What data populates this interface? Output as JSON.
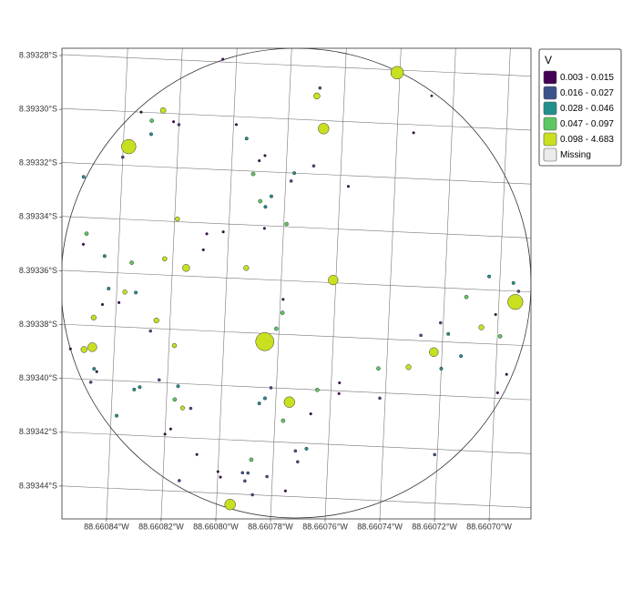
{
  "chart_data": {
    "type": "scatter",
    "x": [
      -88.660741,
      -88.66077,
      -88.660769,
      -88.660728,
      -88.660805,
      -88.660826,
      -88.660834,
      -88.66083,
      -88.66082,
      -88.660822,
      -88.66083,
      -88.660838,
      -88.660767,
      -88.660799,
      -88.660734,
      -88.660795,
      -88.66084,
      -88.660788,
      -88.66079,
      -88.66077,
      -88.660777,
      -88.660792,
      -88.660854,
      -88.660778,
      -88.660757,
      -88.660785,
      -88.660789,
      -88.660787,
      -88.660819,
      -88.660779,
      -88.660802,
      -88.660808,
      -88.660787,
      -88.660852,
      -88.660853,
      -88.660809,
      -88.660845,
      -88.660823,
      -88.660835,
      -88.660815,
      -88.660793,
      -88.660761,
      -88.660704,
      -88.660695,
      -88.660693,
      -88.660694,
      -88.660843,
      -88.660837,
      -88.660833,
      -88.660712,
      -88.660779,
      -88.660845,
      -88.660839,
      -88.660779,
      -88.660701,
      -88.660848,
      -88.660825,
      -88.660721,
      -88.660706,
      -88.660827,
      -88.660781,
      -88.660728,
      -88.660718,
      -88.660699,
      -88.660785,
      -88.660851,
      -88.660848,
      -88.660856,
      -88.660818,
      -88.660723,
      -88.660713,
      -88.660847,
      -88.660846,
      -88.660732,
      -88.66072,
      -88.660743,
      -88.660696,
      -88.660848,
      -88.660823,
      -88.660757,
      -88.660816,
      -88.66083,
      -88.660832,
      -88.660782,
      -88.660765,
      -88.660757,
      -88.660699,
      -88.660742,
      -88.660784,
      -88.660786,
      -88.660775,
      -88.660817,
      -88.660811,
      -88.660814,
      -88.660838,
      -88.660767,
      -88.660777,
      -88.660818,
      -88.66082,
      -88.660772,
      -88.660768,
      -88.660721,
      -88.660808,
      -88.660788,
      -88.660771,
      -88.6608,
      -88.660791,
      -88.660789,
      -88.660782,
      -88.660799,
      -88.660814,
      -88.66079,
      -88.660775,
      -88.660787,
      -88.660795
    ],
    "y": [
      -8.393281,
      -8.393291,
      -8.393288,
      -8.393289,
      -8.393279,
      -8.393299,
      -8.3933,
      -8.393303,
      -8.393304,
      -8.393303,
      -8.393308,
      -8.393313,
      -8.393303,
      -8.393303,
      -8.393303,
      -8.393308,
      -8.393317,
      -8.393314,
      -8.393316,
      -8.393317,
      -8.39332,
      -8.393321,
      -8.393325,
      -8.393323,
      -8.393324,
      -8.393329,
      -8.393331,
      -8.393333,
      -8.393339,
      -8.393339,
      -8.393343,
      -8.393344,
      -8.393341,
      -8.393346,
      -8.39335,
      -8.39335,
      -8.393354,
      -8.393354,
      -8.393356,
      -8.393357,
      -8.393356,
      -8.393359,
      -8.393355,
      -8.393357,
      -8.39336,
      -8.393364,
      -8.393366,
      -8.393367,
      -8.393367,
      -8.393363,
      -8.393367,
      -8.393372,
      -8.393371,
      -8.393372,
      -8.393369,
      -8.393377,
      -8.393377,
      -8.393373,
      -8.393374,
      -8.393381,
      -8.393378,
      -8.393378,
      -8.393377,
      -8.393377,
      -8.393383,
      -8.393389,
      -8.393388,
      -8.393389,
      -8.393386,
      -8.393384,
      -8.393385,
      -8.393396,
      -8.393397,
      -8.39339,
      -8.39339,
      -8.393391,
      -8.393391,
      -8.393401,
      -8.393399,
      -8.393397,
      -8.393401,
      -8.393402,
      -8.393403,
      -8.3934,
      -8.3934,
      -8.393401,
      -8.393398,
      -8.393402,
      -8.393404,
      -8.393406,
      -8.393405,
      -8.393406,
      -8.393409,
      -8.393409,
      -8.393413,
      -8.393409,
      -8.393412,
      -8.393417,
      -8.393419,
      -8.393423,
      -8.393422,
      -8.393422,
      -8.393426,
      -8.393427,
      -8.393427,
      -8.393432,
      -8.393432,
      -8.393432,
      -8.393433,
      -8.393434,
      -8.393436,
      -8.393435,
      -8.393438,
      -8.39344,
      -8.393444
    ],
    "values": [
      2.1,
      0.35,
      0.02,
      0.003,
      0.008,
      0.25,
      0.008,
      0.07,
      0.02,
      0.008,
      0.035,
      2.8,
      1.4,
      0.008,
      0.008,
      0.035,
      0.02,
      0.008,
      0.008,
      0.02,
      0.035,
      0.07,
      0.035,
      0.02,
      0.008,
      0.035,
      0.07,
      0.035,
      0.12,
      0.07,
      0.008,
      0.008,
      0.008,
      0.07,
      0.008,
      0.008,
      0.035,
      0.13,
      0.07,
      0.5,
      0.2,
      1.1,
      0.035,
      0.035,
      0.02,
      3.1,
      0.035,
      0.12,
      0.035,
      0.07,
      0.008,
      0.008,
      0.008,
      0.07,
      0.008,
      0.2,
      0.2,
      0.02,
      0.2,
      0.02,
      0.07,
      0.02,
      0.035,
      0.07,
      4.683,
      0.35,
      0.9,
      0.008,
      0.12,
      0.9,
      0.035,
      0.035,
      0.008,
      0.2,
      0.035,
      0.07,
      0.008,
      0.02,
      0.02,
      0.008,
      0.035,
      0.035,
      0.035,
      0.02,
      0.07,
      0.008,
      0.008,
      0.02,
      0.035,
      0.035,
      1.4,
      0.07,
      0.02,
      0.1,
      0.035,
      0.008,
      0.07,
      0.008,
      0.008,
      0.02,
      0.035,
      0.02,
      0.008,
      0.07,
      0.02,
      0.008,
      0.02,
      0.02,
      0.02,
      0.008,
      0.02,
      0.02,
      0.008,
      0.02,
      1.4
    ],
    "xlim": [
      -88.6608563,
      -88.6606847
    ],
    "ylim": [
      -8.3934522,
      -8.3932773
    ],
    "xticks": [
      {
        "value": -88.66084,
        "label": "88.66084°W"
      },
      {
        "value": -88.66082,
        "label": "88.66082°W"
      },
      {
        "value": -88.6608,
        "label": "88.66080°W"
      },
      {
        "value": -88.66078,
        "label": "88.66078°W"
      },
      {
        "value": -88.66076,
        "label": "88.66076°W"
      },
      {
        "value": -88.66074,
        "label": "88.66074°W"
      },
      {
        "value": -88.66072,
        "label": "88.66072°W"
      },
      {
        "value": -88.6607,
        "label": "88.66070°W"
      }
    ],
    "yticks": [
      {
        "value": -8.39328,
        "label": "8.39328°S"
      },
      {
        "value": -8.3933,
        "label": "8.39330°S"
      },
      {
        "value": -8.39332,
        "label": "8.39332°S"
      },
      {
        "value": -8.39334,
        "label": "8.39334°S"
      },
      {
        "value": -8.39336,
        "label": "8.39336°S"
      },
      {
        "value": -8.39338,
        "label": "8.39338°S"
      },
      {
        "value": -8.3934,
        "label": "8.39340°S"
      },
      {
        "value": -8.39342,
        "label": "8.39342°S"
      },
      {
        "value": -8.39344,
        "label": "8.39344°S"
      }
    ],
    "grid": true,
    "legend": {
      "title": "V",
      "position": "right",
      "classes": [
        {
          "label": "0.003 - 0.015",
          "min": 0.003,
          "max": 0.015,
          "color": "#440154"
        },
        {
          "label": "0.016 - 0.027",
          "min": 0.016,
          "max": 0.027,
          "color": "#3b528b"
        },
        {
          "label": "0.028 - 0.046",
          "min": 0.028,
          "max": 0.046,
          "color": "#21908c"
        },
        {
          "label": "0.047 - 0.097",
          "min": 0.047,
          "max": 0.097,
          "color": "#5dc863"
        },
        {
          "label": "0.098 - 4.683",
          "min": 0.098,
          "max": 4.683,
          "color": "#c8e020"
        },
        {
          "label": "Missing",
          "color": "#ebebeb"
        }
      ]
    }
  }
}
